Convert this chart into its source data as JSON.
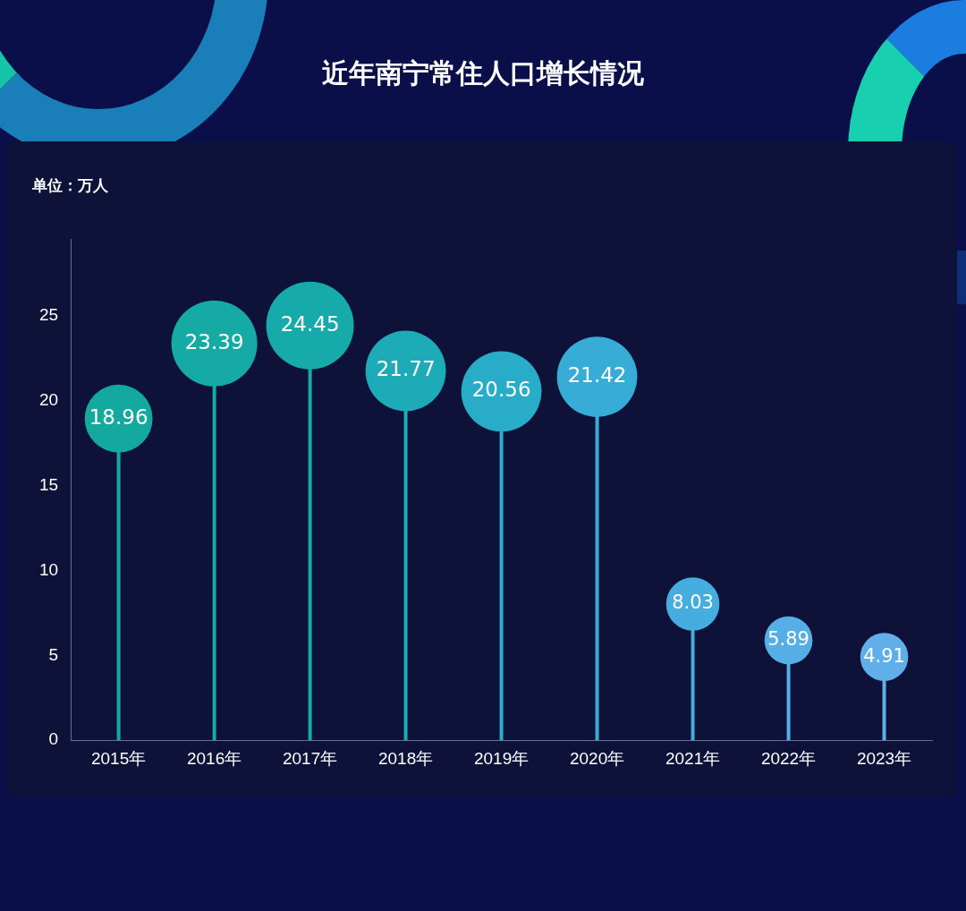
{
  "chart_data": {
    "type": "lollipop",
    "title": "近年南宁常住人口增长情况",
    "ylabel": "单位：万人",
    "categories": [
      "2015年",
      "2016年",
      "2017年",
      "2018年",
      "2019年",
      "2020年",
      "2021年",
      "2022年",
      "2023年"
    ],
    "values": [
      18.96,
      23.39,
      24.45,
      21.77,
      20.56,
      21.42,
      8.03,
      5.89,
      4.91
    ],
    "sizes": [
      0.6,
      0.96,
      1,
      0.84,
      0.84,
      0.84,
      0.37,
      0.3,
      0.3
    ],
    "colors": [
      "#14a99e",
      "#15aaa4",
      "#17aaaa",
      "#1eabb8",
      "#28acc8",
      "#36acd6",
      "#46ade0",
      "#55aee6",
      "#60afea"
    ],
    "ylim": [
      0,
      29.5
    ],
    "yticks": [
      0,
      5,
      10,
      15,
      20,
      25
    ],
    "data_labels": true,
    "grid": false,
    "legend": false
  }
}
